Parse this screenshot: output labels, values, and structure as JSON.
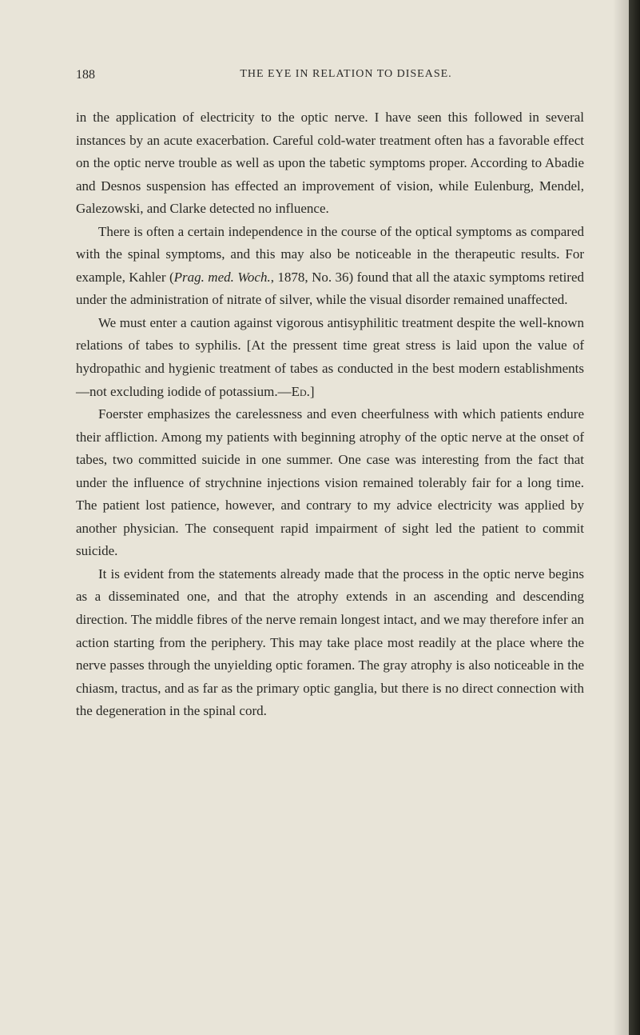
{
  "page_number": "188",
  "header": "THE EYE IN RELATION TO DISEASE.",
  "paragraphs": {
    "p1": "in the application of electricity to the optic nerve. I have seen this followed in several instances by an acute exacerbation. Careful cold-water treatment often has a favorable effect on the optic nerve trouble as well as upon the tabetic symptoms proper. According to Abadie and Desnos suspension has effected an improvement of vision, while Eulenburg, Mendel, Galezowski, and Clarke detected no influence.",
    "p2_a": "There is often a certain independence in the course of the optical symptoms as compared with the spinal symptoms, and this may also be noticeable in the therapeutic results. For example, Kahler (",
    "p2_italic": "Prag. med. Woch.",
    "p2_b": ", 1878, No. 36) found that all the ataxic symptoms retired under the administration of nitrate of silver, while the visual disorder remained unaffected.",
    "p3_a": "We must enter a caution against vigorous antisyphilitic treatment despite the well-known relations of tabes to syphilis. [At the pressent time great stress is laid upon the value of hydropathic and hygienic treatment of tabes as conducted in the best modern establishments—not excluding iodide of potassium.—",
    "p3_ed": "Ed.",
    "p3_b": "]",
    "p4": "Foerster emphasizes the carelessness and even cheerfulness with which patients endure their affliction. Among my patients with beginning atrophy of the optic nerve at the onset of tabes, two committed suicide in one summer. One case was interesting from the fact that under the influence of strychnine injections vision remained tolerably fair for a long time. The patient lost patience, however, and contrary to my advice electricity was applied by another physician. The consequent rapid impairment of sight led the patient to commit suicide.",
    "p5": "It is evident from the statements already made that the process in the optic nerve begins as a disseminated one, and that the atrophy extends in an ascending and descending direction. The middle fibres of the nerve remain longest intact, and we may therefore infer an action starting from the periphery. This may take place most readily at the place where the nerve passes through the unyielding optic foramen. The gray atrophy is also noticeable in the chiasm, tractus, and as far as the primary optic ganglia, but there is no direct connection with the degeneration in the spinal cord."
  },
  "colors": {
    "background": "#e8e4d8",
    "text": "#282824",
    "edge": "#1a1a15"
  }
}
